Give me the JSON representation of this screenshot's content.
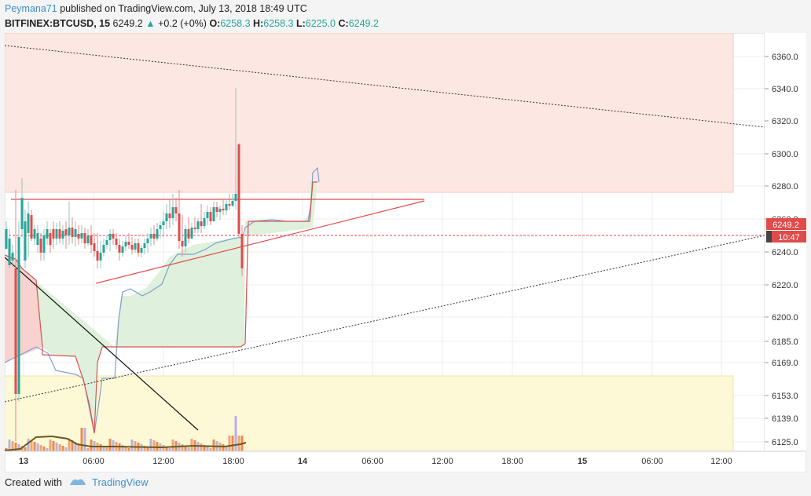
{
  "header": {
    "user": "Peymana71",
    "published_text": " published on TradingView.com, July 13, 2018 18:49 UTC",
    "symbol": "BITFINEX:BTCUSD, 15",
    "last": "6249.2",
    "up_arrow": "▲",
    "change": "+0.2 (+0%)",
    "o_label": "O:",
    "o_value": "6258.3",
    "h_label": "H:",
    "h_value": "6258.3",
    "l_label": "L:",
    "l_value": "6225.0",
    "c_label": "C:",
    "c_value": "6249.2"
  },
  "price_axis": {
    "ticks": [
      "6360.0",
      "6340.0",
      "6320.0",
      "6300.0",
      "6280.0",
      "6260.0",
      "6240.0",
      "6220.0",
      "6200.0",
      "6185.0",
      "6169.0",
      "6153.0",
      "6139.0",
      "6125.0"
    ],
    "last_price_label": "6249.2",
    "countdown_label": "10:47"
  },
  "time_axis": {
    "ticks": [
      "13",
      "06:00",
      "12:00",
      "18:00",
      "14",
      "06:00",
      "12:00",
      "18:00",
      "15",
      "06:00",
      "12:00"
    ]
  },
  "footer": {
    "created_with": "Created with",
    "brand": "TradingView"
  },
  "colors": {
    "bull": "#26a69a",
    "bear": "#e04b4b",
    "resistance_zone": "#fde7e2",
    "support_zone": "#fdf8d6",
    "cloud_green": "#dff0dc",
    "cloud_red": "#f7d2cf"
  }
}
